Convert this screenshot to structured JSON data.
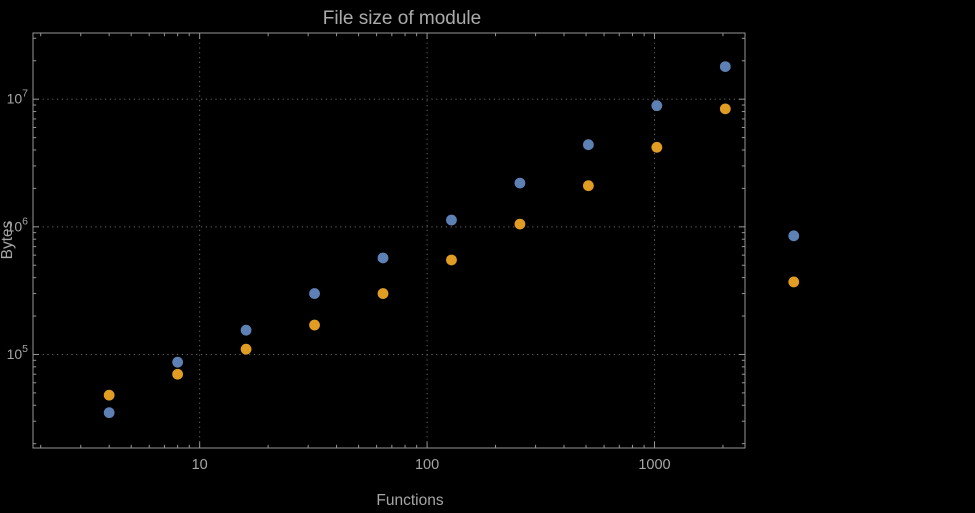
{
  "chart_data": {
    "type": "scatter",
    "title": "File size of module",
    "xlabel": "Functions",
    "ylabel": "Bytes",
    "x_scale": "log",
    "y_scale": "log",
    "xlim": [
      1.85,
      2500
    ],
    "ylim": [
      18500,
      33000000
    ],
    "grid": "dotted-major-gridlines",
    "legend": "none",
    "frame": true,
    "x_major_ticks": [
      10,
      100,
      1000
    ],
    "x_major_tick_labels": [
      "10",
      "100",
      "1000"
    ],
    "y_major_ticks": [
      100000,
      1000000,
      10000000
    ],
    "y_major_tick_exponents": [
      "5",
      "6",
      "7"
    ],
    "series": [
      {
        "name": "series-1",
        "color": "#5e81b5",
        "x": [
          4,
          8,
          16,
          32,
          64,
          128,
          256,
          512,
          1024,
          2048,
          4096
        ],
        "y": [
          35000,
          87000,
          155000,
          300000,
          570000,
          1130000,
          2200000,
          4400000,
          8900000,
          18000000,
          850000
        ]
      },
      {
        "name": "series-2",
        "color": "#e19c24",
        "x": [
          4,
          8,
          16,
          32,
          64,
          128,
          256,
          512,
          1024,
          2048,
          4096
        ],
        "y": [
          48000,
          70000,
          110000,
          170000,
          300000,
          550000,
          1050000,
          2100000,
          4200000,
          8400000,
          370000
        ]
      }
    ]
  },
  "styles": {
    "background": "#000000",
    "text_color": "#a6a6a6",
    "title_color": "#ababab",
    "frame_color": "#969696",
    "grid_color": "#686868"
  }
}
